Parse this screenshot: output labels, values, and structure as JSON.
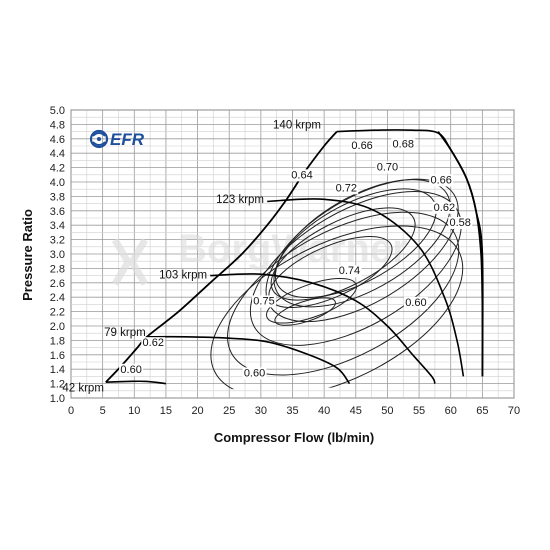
{
  "chart_data": {
    "type": "line",
    "title": "",
    "xlabel": "Compressor Flow (lb/min)",
    "ylabel": "Pressure Ratio",
    "xlim": [
      0,
      70
    ],
    "ylim": [
      1.0,
      5.0
    ],
    "x_ticks": [
      "0",
      "5",
      "10",
      "15",
      "20",
      "25",
      "30",
      "35",
      "40",
      "45",
      "50",
      "55",
      "60",
      "65",
      "70"
    ],
    "y_ticks": [
      "1.0",
      "1.2",
      "1.4",
      "1.6",
      "1.8",
      "2.0",
      "2.2",
      "2.4",
      "2.6",
      "2.8",
      "3.0",
      "3.2",
      "3.4",
      "3.6",
      "3.8",
      "4.0",
      "4.2",
      "4.4",
      "4.6",
      "4.8",
      "5.0"
    ],
    "grid": true,
    "logo": "EFR",
    "watermark": "BorgWarner",
    "surge_line": [
      [
        5.5,
        1.22
      ],
      [
        8,
        1.45
      ],
      [
        10.5,
        1.7
      ],
      [
        12,
        1.85
      ],
      [
        17,
        2.2
      ],
      [
        22,
        2.6
      ],
      [
        27,
        3.0
      ],
      [
        31,
        3.4
      ],
      [
        34,
        3.75
      ],
      [
        37,
        4.15
      ],
      [
        40,
        4.5
      ],
      [
        42,
        4.7
      ]
    ],
    "choke_line": [
      [
        58,
        4.7
      ],
      [
        60,
        4.45
      ],
      [
        62.5,
        4.05
      ],
      [
        64,
        3.6
      ],
      [
        64.8,
        3.0
      ],
      [
        65,
        2.3
      ],
      [
        65,
        1.3
      ]
    ],
    "speed_lines": [
      {
        "label": "42 krpm",
        "points": [
          [
            5.5,
            1.22
          ],
          [
            9,
            1.23
          ],
          [
            12,
            1.23
          ],
          [
            15,
            1.2
          ]
        ]
      },
      {
        "label": "79 krpm",
        "points": [
          [
            12,
            1.85
          ],
          [
            18,
            1.85
          ],
          [
            25,
            1.83
          ],
          [
            31,
            1.78
          ],
          [
            37,
            1.62
          ],
          [
            42,
            1.42
          ],
          [
            44,
            1.2
          ]
        ]
      },
      {
        "label": "103 krpm",
        "points": [
          [
            22,
            2.7
          ],
          [
            30,
            2.72
          ],
          [
            38,
            2.6
          ],
          [
            45,
            2.35
          ],
          [
            50,
            2.0
          ],
          [
            54,
            1.6
          ],
          [
            57,
            1.3
          ],
          [
            57.5,
            1.2
          ]
        ]
      },
      {
        "label": "123 krpm",
        "points": [
          [
            31,
            3.73
          ],
          [
            40,
            3.76
          ],
          [
            48,
            3.6
          ],
          [
            55,
            3.1
          ],
          [
            59,
            2.4
          ],
          [
            61,
            1.8
          ],
          [
            62,
            1.3
          ]
        ]
      },
      {
        "label": "140 krpm",
        "points": [
          [
            42,
            4.7
          ],
          [
            48,
            4.72
          ],
          [
            54,
            4.72
          ],
          [
            58,
            4.68
          ],
          [
            60,
            4.45
          ],
          [
            62.5,
            4.05
          ],
          [
            64,
            3.6
          ],
          [
            65,
            3.0
          ],
          [
            65,
            1.3
          ]
        ]
      }
    ],
    "efficiency_islands": [
      {
        "label": "0.75",
        "cx": 37,
        "cy": 2.2,
        "rx": 10,
        "ry": 0.28,
        "rot": 18
      },
      {
        "label": "0.74",
        "cx": 38,
        "cy": 2.35,
        "rx": 15,
        "ry": 0.45,
        "rot": 20
      },
      {
        "label": "0.72",
        "cx": 41,
        "cy": 2.75,
        "rx": 21,
        "ry": 0.7,
        "rot": 24
      },
      {
        "label": "0.70",
        "cx": 43,
        "cy": 3.0,
        "rx": 25,
        "ry": 0.9,
        "rot": 27
      },
      {
        "label": "0.68",
        "cx": 45,
        "cy": 3.15,
        "rx": 28,
        "ry": 1.1,
        "rot": 28
      },
      {
        "label": "0.66",
        "cx": 46,
        "cy": 3.15,
        "rx": 31,
        "ry": 1.3,
        "rot": 30
      },
      {
        "label": "0.64",
        "cx": 46,
        "cy": 3.05,
        "rx": 34,
        "ry": 1.45,
        "rot": 31
      },
      {
        "label": "0.62",
        "cx": 45,
        "cy": 2.8,
        "rx": 37,
        "ry": 1.6,
        "rot": 30
      },
      {
        "label": "0.60",
        "cx": 43,
        "cy": 2.45,
        "rx": 40,
        "ry": 1.75,
        "rot": 28
      },
      {
        "label": "0.58",
        "cx": 42,
        "cy": 2.2,
        "rx": 43,
        "ry": 1.9,
        "rot": 26
      }
    ],
    "speed_labels": [
      {
        "text": "140 krpm",
        "x": 39.5,
        "y": 4.74
      },
      {
        "text": "123 krpm",
        "x": 30.5,
        "y": 3.71
      },
      {
        "text": "103 krpm",
        "x": 21.5,
        "y": 2.66
      },
      {
        "text": "79 krpm",
        "x": 11.8,
        "y": 1.86
      },
      {
        "text": "42 krpm",
        "x": 5.2,
        "y": 1.09
      }
    ],
    "eff_labels": [
      {
        "text": "0.66",
        "x": 46,
        "y": 4.46
      },
      {
        "text": "0.68",
        "x": 52.5,
        "y": 4.48
      },
      {
        "text": "0.70",
        "x": 50,
        "y": 4.16
      },
      {
        "text": "0.64",
        "x": 36.5,
        "y": 4.05
      },
      {
        "text": "0.72",
        "x": 43.5,
        "y": 3.87
      },
      {
        "text": "0.66",
        "x": 58.5,
        "y": 3.98
      },
      {
        "text": "0.62",
        "x": 59,
        "y": 3.6
      },
      {
        "text": "0.58",
        "x": 61.5,
        "y": 3.39
      },
      {
        "text": "0.74",
        "x": 44,
        "y": 2.72
      },
      {
        "text": "0.60",
        "x": 54.5,
        "y": 2.28
      },
      {
        "text": "0.75",
        "x": 30.5,
        "y": 2.3
      },
      {
        "text": "0.62",
        "x": 13,
        "y": 1.72
      },
      {
        "text": "0.60",
        "x": 9.5,
        "y": 1.35
      },
      {
        "text": "0.60",
        "x": 29,
        "y": 1.3
      }
    ]
  }
}
